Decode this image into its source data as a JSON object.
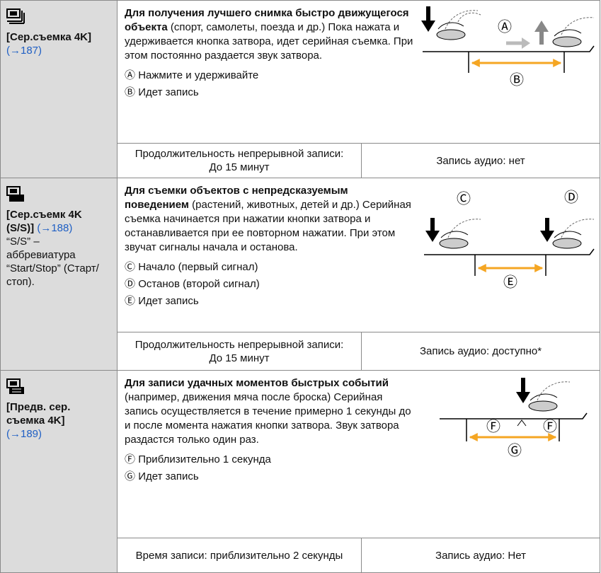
{
  "rows": [
    {
      "mode": {
        "name": "[Сер.съемка 4K]",
        "ref": "(→187)"
      },
      "description": {
        "bold": "Для получения лучшего снимка быстро движущегося объекта",
        "text": " (спорт, самолеты, поезда и др.) Пока нажата и удерживается кнопка затвора, идет серийная съемка. При этом постоянно раздается звук затвора."
      },
      "diagram_labels": [
        "Ⓐ",
        "Ⓑ"
      ],
      "notes": [
        {
          "marker": "Ⓐ",
          "text": "Нажмите и удерживайте"
        },
        {
          "marker": "Ⓑ",
          "text": "Идет запись"
        }
      ],
      "specs": [
        "Продолжительность непрерывной записи: До 15 минут",
        "Запись аудио: нет"
      ]
    },
    {
      "mode": {
        "name": "[Сер.съемк 4K (S/S)]",
        "ref": "(→188)",
        "note": "“S/S” – аббревиатура “Start/Stop” (Старт/стоп)."
      },
      "description": {
        "bold": "Для съемки объектов с непредсказуемым поведением",
        "text": " (растений, животных, детей и др.) Серийная съемка начинается при нажатии кнопки затвора и останавливается при ее повторном нажатии. При этом звучат сигналы начала и останова."
      },
      "diagram_labels": [
        "Ⓒ",
        "Ⓓ",
        "Ⓔ"
      ],
      "notes": [
        {
          "marker": "Ⓒ",
          "text": "Начало (первый сигнал)"
        },
        {
          "marker": "Ⓓ",
          "text": "Останов (второй сигнал)"
        },
        {
          "marker": "Ⓔ",
          "text": "Идет запись"
        }
      ],
      "specs": [
        "Продолжительность непрерывной записи: До 15 минут",
        "Запись аудио: доступно*"
      ]
    },
    {
      "mode": {
        "name": "[Предв. сер. съемка 4K]",
        "ref": "(→189)"
      },
      "description": {
        "bold": "Для записи удачных моментов быстрых событий",
        "text": " (например, движения мяча после броска) Серийная запись осуществляется в течение примерно 1 секунды до и после момента нажатия кнопки затвора. Звук затвора раздастся только один раз."
      },
      "diagram_labels": [
        "Ⓕ",
        "Ⓕ",
        "Ⓖ"
      ],
      "notes": [
        {
          "marker": "Ⓕ",
          "text": "Приблизительно 1 секунда"
        },
        {
          "marker": "Ⓖ",
          "text": "Идет запись"
        }
      ],
      "specs": [
        "Время записи: приблизительно 2 секунды",
        "Запись аудио: Нет"
      ]
    }
  ]
}
